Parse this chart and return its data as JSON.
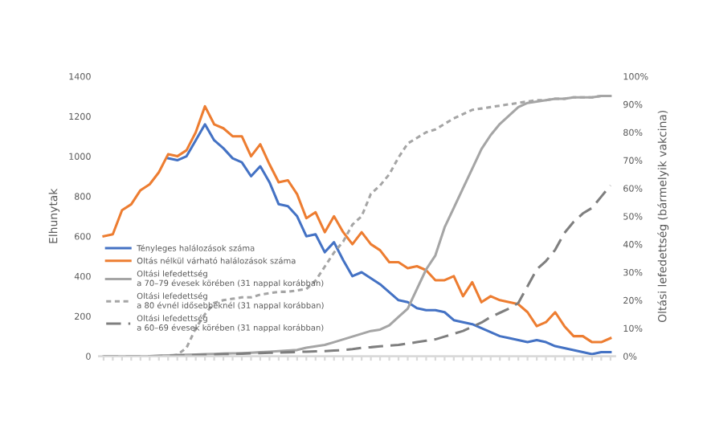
{
  "chart_data": {
    "type": "line",
    "ylabel": "Elhunytak",
    "y2label": "Oltási lefedettség (bármelyik vakcina)",
    "categories": [
      null,
      null,
      null,
      null,
      null,
      null,
      null,
      null,
      null,
      null,
      null,
      null,
      null,
      null,
      null,
      null,
      null,
      null,
      null,
      null,
      null,
      null,
      null,
      null,
      null,
      null,
      null,
      null,
      null,
      null,
      null,
      null,
      null,
      null,
      null,
      null,
      null,
      null,
      null,
      null,
      null,
      null,
      null,
      null,
      null,
      null,
      null,
      null,
      null,
      null,
      null,
      null,
      null,
      null,
      null,
      null
    ],
    "ylim": [
      0,
      1400
    ],
    "yticks": [
      0,
      200,
      400,
      600,
      800,
      1000,
      1200,
      1400
    ],
    "y2lim": [
      0,
      100
    ],
    "y2ticks": [
      {
        "value": 0,
        "label": "0%"
      },
      {
        "value": 10,
        "label": "10%"
      },
      {
        "value": 20,
        "label": "20%"
      },
      {
        "value": 30,
        "label": "30%"
      },
      {
        "value": 40,
        "label": "40%"
      },
      {
        "value": 50,
        "label": "50%"
      },
      {
        "value": 60,
        "label": "60%"
      },
      {
        "value": 70,
        "label": "70%"
      },
      {
        "value": 80,
        "label": "80%"
      },
      {
        "value": 90,
        "label": "90%"
      },
      {
        "value": 100,
        "label": "100%"
      }
    ],
    "legend": "left",
    "grid": false,
    "marker": "none",
    "series": [
      {
        "name": "Tényleges halálozások száma",
        "color": "#4472c4",
        "line_style": "solid",
        "values": [
          null,
          null,
          null,
          null,
          null,
          null,
          null,
          990,
          980,
          1000,
          1080,
          1160,
          1080,
          1040,
          990,
          970,
          900,
          950,
          870,
          760,
          750,
          700,
          600,
          610,
          520,
          570,
          480,
          400,
          420,
          390,
          360,
          320,
          280,
          270,
          240,
          230,
          230,
          220,
          180,
          170,
          160,
          140,
          120,
          100,
          90,
          80,
          70,
          80,
          70,
          50,
          40,
          30,
          20,
          10,
          20,
          20
        ]
      },
      {
        "name": "Oltás nélkül várható halálozások száma",
        "color": "#ed7d31",
        "line_style": "solid",
        "values": [
          600,
          610,
          730,
          760,
          830,
          860,
          920,
          1010,
          1000,
          1030,
          1120,
          1250,
          1160,
          1140,
          1100,
          1100,
          1000,
          1060,
          960,
          870,
          880,
          810,
          690,
          720,
          620,
          700,
          620,
          560,
          620,
          560,
          530,
          470,
          470,
          440,
          450,
          430,
          380,
          380,
          400,
          300,
          370,
          270,
          300,
          280,
          270,
          260,
          220,
          150,
          170,
          220,
          150,
          100,
          100,
          70,
          70,
          90
        ]
      },
      {
        "name": "Oltási lefedettség\na 70–79 évesek körében (31 nappal korábban)",
        "color": "#a5a5a5",
        "line_style": "solid",
        "axis": "y2",
        "values": [
          0,
          0,
          0,
          0,
          0,
          0,
          0.2,
          0.3,
          0.4,
          0.5,
          0.6,
          0.7,
          0.8,
          0.9,
          1,
          1,
          1.2,
          1.4,
          1.6,
          1.8,
          2,
          2.2,
          3,
          3.5,
          4,
          5,
          6,
          7,
          8,
          9,
          9.5,
          11,
          14,
          17,
          24,
          31,
          36,
          46,
          53,
          60,
          67,
          74,
          79,
          83,
          86,
          89,
          90.5,
          91,
          91.5,
          92,
          92,
          92.5,
          92.5,
          92.5,
          93,
          93
        ]
      },
      {
        "name": "Oltási lefedettség\na 80 évnél idősebbeknél (31 nappal korábban)",
        "color": "#a5a5a5",
        "line_style": "dotted",
        "axis": "y2",
        "values": [
          0,
          0,
          0,
          0,
          0,
          0,
          0,
          0,
          0.5,
          3,
          10,
          15,
          19,
          20,
          20.5,
          21,
          21,
          22,
          22.5,
          23,
          23,
          23.5,
          24,
          27,
          32,
          37,
          41,
          47,
          50,
          58,
          61,
          65,
          71,
          76,
          78,
          80,
          81,
          83,
          85,
          86.5,
          88,
          88.5,
          89,
          89.5,
          90,
          90.5,
          91,
          91.5,
          91.5,
          92,
          92,
          92.5,
          92.5,
          92.5,
          93,
          93
        ]
      },
      {
        "name": "Oltási lefedettség\na 60–69 évesek körében (31 nappal korábban)",
        "color": "#7f7f7f",
        "line_style": "dashed",
        "axis": "y2",
        "values": [
          0,
          0,
          0,
          0,
          0,
          0,
          0,
          0.1,
          0.2,
          0.3,
          0.4,
          0.5,
          0.6,
          0.7,
          0.8,
          0.9,
          1,
          1.1,
          1.2,
          1.3,
          1.4,
          1.5,
          1.6,
          1.7,
          1.8,
          2,
          2.2,
          2.5,
          3,
          3.2,
          3.5,
          3.8,
          4,
          4.5,
          5,
          5.5,
          6,
          7,
          8,
          9,
          10.5,
          12,
          14,
          15.5,
          17,
          19,
          25,
          31,
          34,
          38,
          44,
          48,
          51,
          53,
          57,
          61
        ]
      }
    ]
  }
}
